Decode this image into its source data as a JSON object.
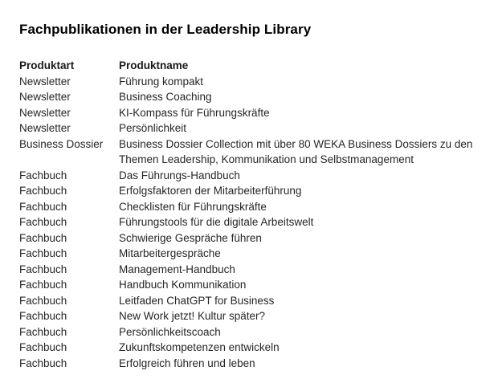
{
  "page": {
    "title": "Fachpublikationen in der Leadership Library"
  },
  "table": {
    "headers": {
      "produktart": "Produktart",
      "produktname": "Produktname"
    },
    "rows": [
      {
        "produktart": "Newsletter",
        "produktname": "Führung kompakt"
      },
      {
        "produktart": "Newsletter",
        "produktname": "Business Coaching"
      },
      {
        "produktart": "Newsletter",
        "produktname": "KI-Kompass für Führungskräfte"
      },
      {
        "produktart": "Newsletter",
        "produktname": "Persönlichkeit"
      },
      {
        "produktart": "Business Dossier",
        "produktname": "Business Dossier Collection mit über 80 WEKA Business Dossiers zu den Themen Leadership, Kommunikation und Selbstmanagement"
      },
      {
        "produktart": "Fachbuch",
        "produktname": "Das Führungs-Handbuch"
      },
      {
        "produktart": "Fachbuch",
        "produktname": "Erfolgsfaktoren der Mitarbeiterführung"
      },
      {
        "produktart": "Fachbuch",
        "produktname": "Checklisten für Führungskräfte"
      },
      {
        "produktart": "Fachbuch",
        "produktname": "Führungstools für die digitale Arbeitswelt"
      },
      {
        "produktart": "Fachbuch",
        "produktname": "Schwierige Gespräche führen"
      },
      {
        "produktart": "Fachbuch",
        "produktname": "Mitarbeitergespräche"
      },
      {
        "produktart": "Fachbuch",
        "produktname": "Management-Handbuch"
      },
      {
        "produktart": "Fachbuch",
        "produktname": "Handbuch Kommunikation"
      },
      {
        "produktart": "Fachbuch",
        "produktname": "Leitfaden ChatGPT for Business"
      },
      {
        "produktart": "Fachbuch",
        "produktname": "New Work jetzt! Kultur später?"
      },
      {
        "produktart": "Fachbuch",
        "produktname": "Persönlichkeitscoach"
      },
      {
        "produktart": "Fachbuch",
        "produktname": "Zukunftskompetenzen entwickeln"
      },
      {
        "produktart": "Fachbuch",
        "produktname": "Erfolgreich führen und leben"
      }
    ]
  },
  "colors": {
    "background": "#ffffff",
    "title_text": "#000000",
    "body_text": "#262626"
  }
}
